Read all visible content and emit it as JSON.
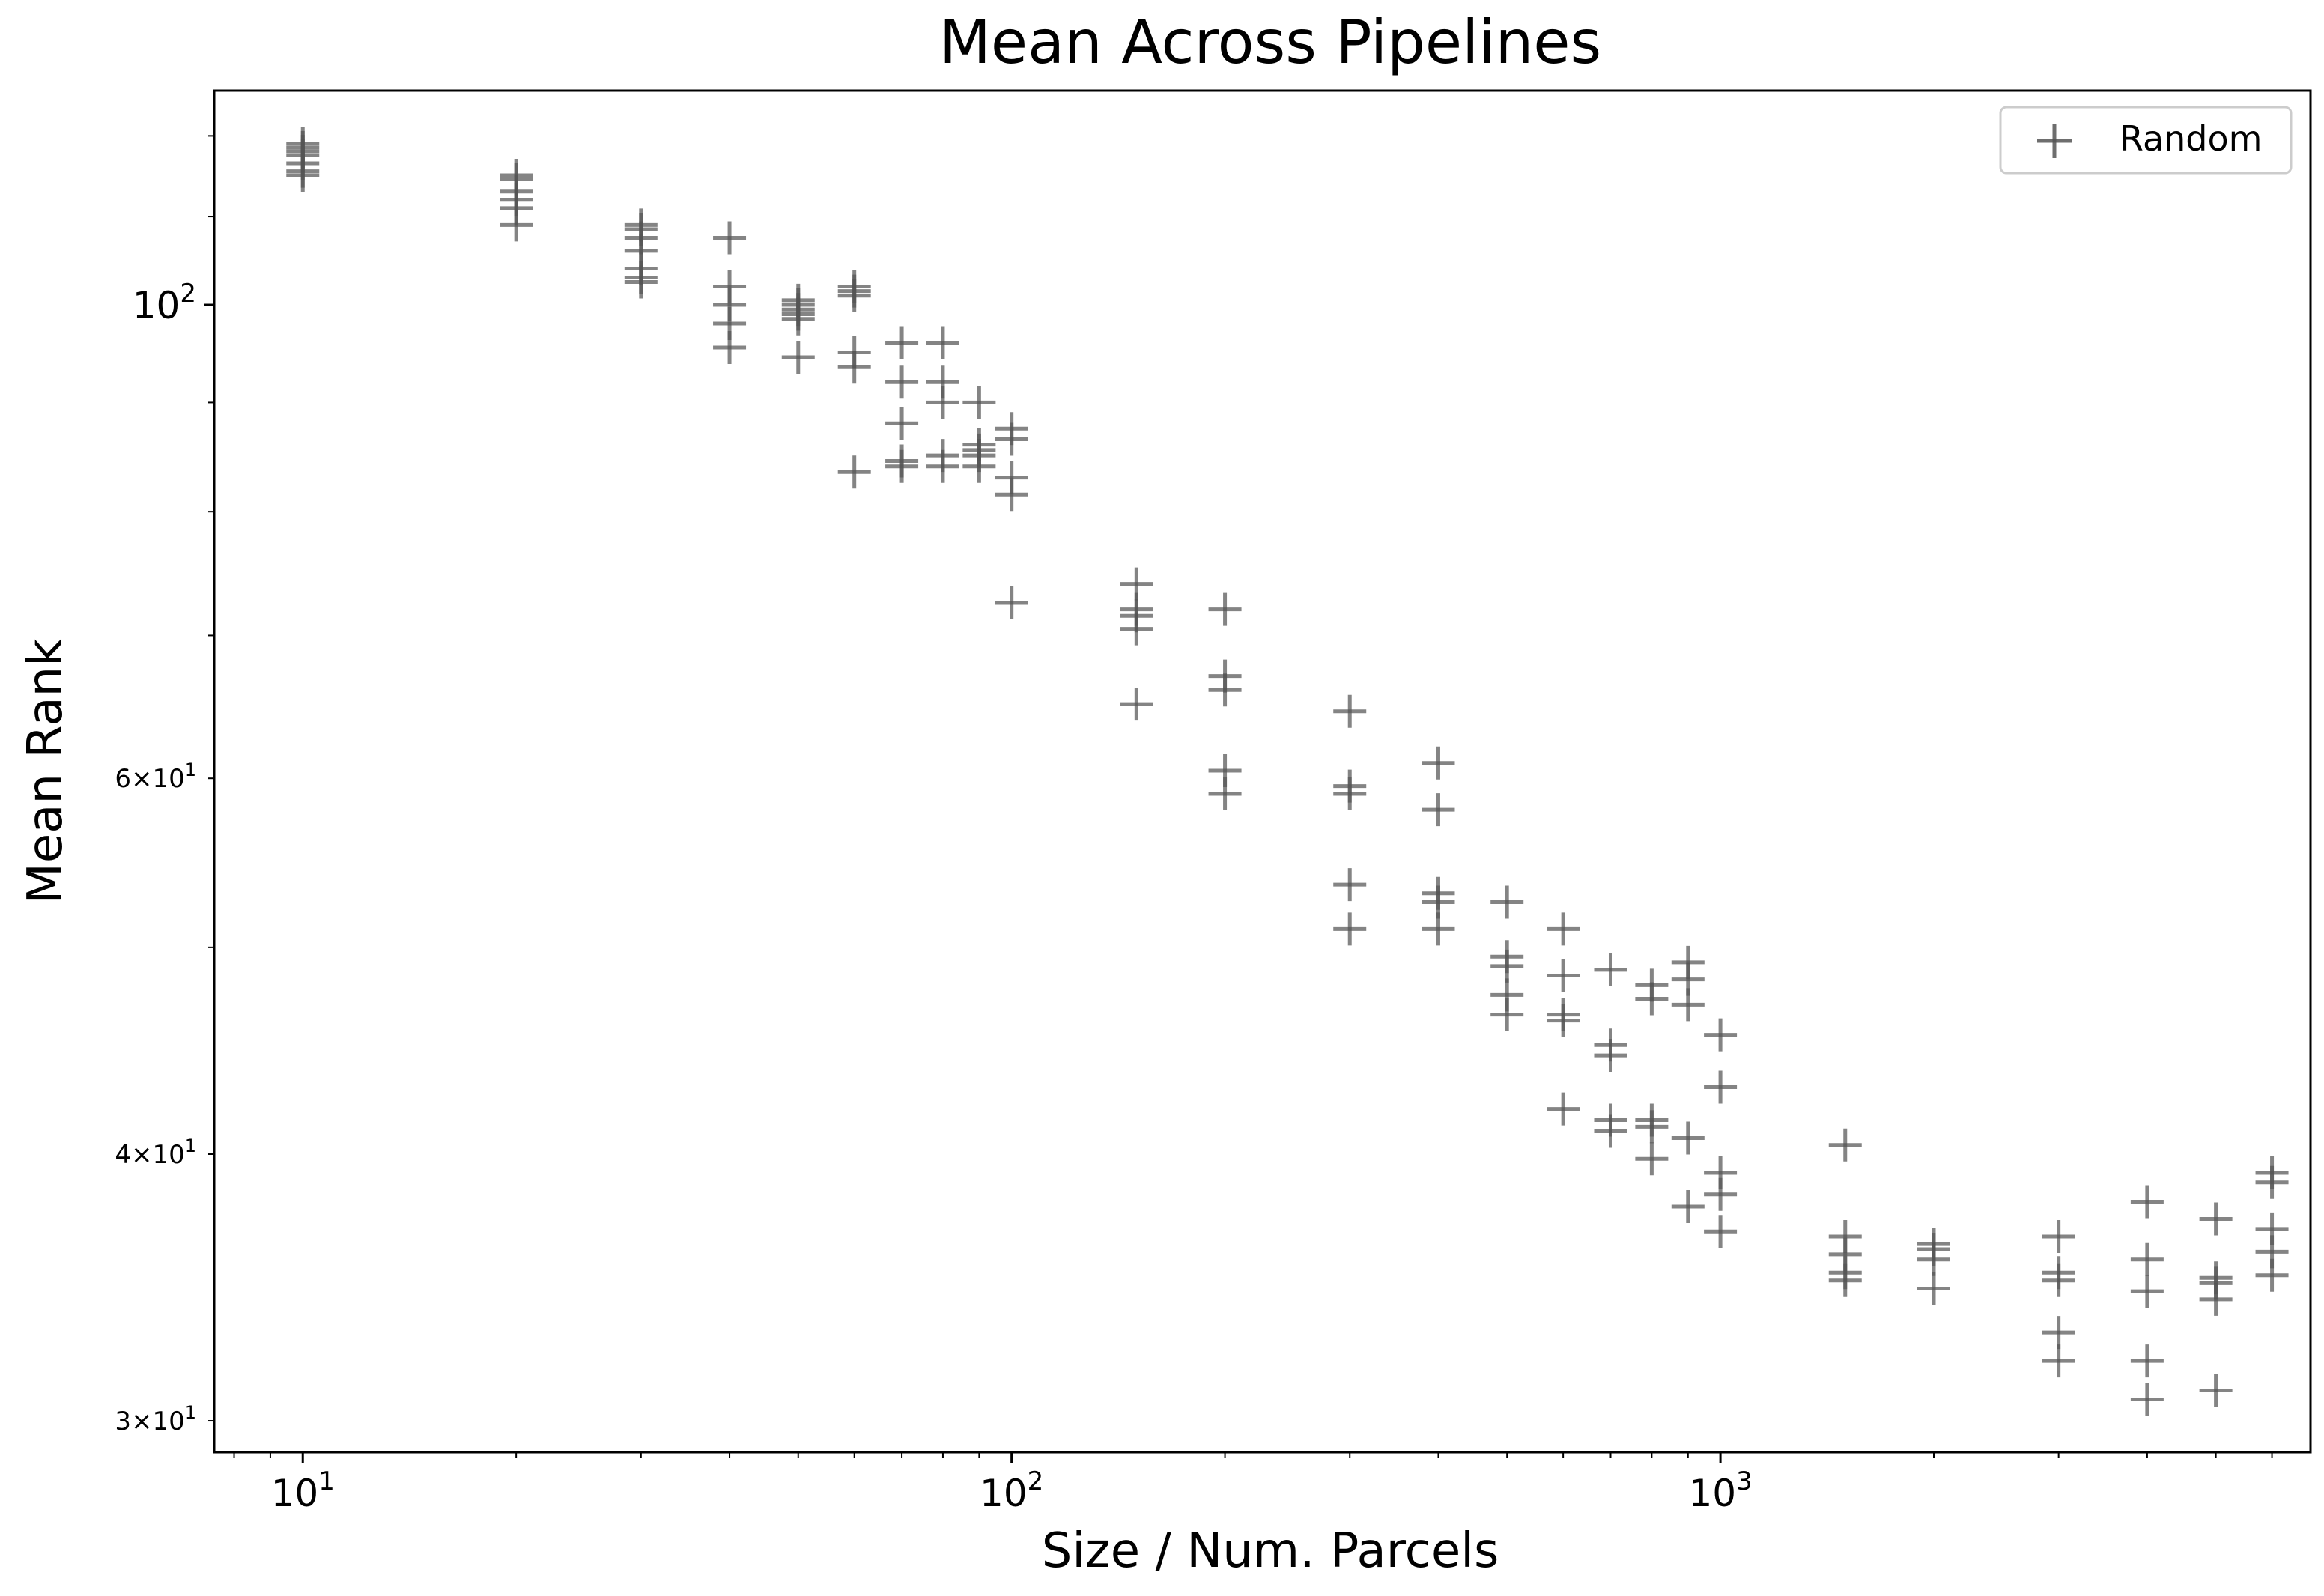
{
  "chart_data": {
    "type": "scatter",
    "title": "Mean Across Pipelines",
    "xlabel": "Size / Num. Parcels",
    "ylabel": "Mean Rank",
    "xscale": "log",
    "yscale": "log",
    "xlim": [
      7.5,
      6800
    ],
    "ylim": [
      29.0,
      126.0
    ],
    "grid": false,
    "legend": {
      "placement": "top-right",
      "entries": [
        "Random"
      ]
    },
    "marker": "+",
    "marker_color": "#555555",
    "x_ticks": [
      {
        "value": 10,
        "base": "10",
        "exp": "1"
      },
      {
        "value": 100,
        "base": "10",
        "exp": "2"
      },
      {
        "value": 1000,
        "base": "10",
        "exp": "3"
      }
    ],
    "y_ticks": [
      {
        "value": 100,
        "mant": "",
        "base": "10",
        "exp": "2"
      },
      {
        "value": 60,
        "mant": "6×",
        "base": "10",
        "exp": "1"
      },
      {
        "value": 40,
        "mant": "4×",
        "base": "10",
        "exp": "1"
      },
      {
        "value": 30,
        "mant": "3×",
        "base": "10",
        "exp": "1"
      }
    ],
    "series": [
      {
        "name": "Random",
        "points": [
          [
            10,
            119
          ],
          [
            10,
            118.5
          ],
          [
            10,
            118
          ],
          [
            10,
            117.5
          ],
          [
            10,
            116.5
          ],
          [
            10,
            115.5
          ],
          [
            10,
            115
          ],
          [
            20,
            115
          ],
          [
            20,
            114.5
          ],
          [
            20,
            113
          ],
          [
            20,
            112
          ],
          [
            20,
            111
          ],
          [
            20,
            109
          ],
          [
            30,
            109
          ],
          [
            30,
            108.5
          ],
          [
            30,
            107.5
          ],
          [
            30,
            106
          ],
          [
            30,
            104
          ],
          [
            30,
            103
          ],
          [
            30,
            102.5
          ],
          [
            40,
            107.5
          ],
          [
            40,
            102
          ],
          [
            40,
            100
          ],
          [
            40,
            98
          ],
          [
            40,
            95.5
          ],
          [
            50,
            100.5
          ],
          [
            50,
            100
          ],
          [
            50,
            99.5
          ],
          [
            50,
            99
          ],
          [
            50,
            98.5
          ],
          [
            50,
            94.5
          ],
          [
            60,
            102
          ],
          [
            60,
            101.5
          ],
          [
            60,
            101
          ],
          [
            60,
            95
          ],
          [
            60,
            93.5
          ],
          [
            60,
            83.5
          ],
          [
            70,
            96
          ],
          [
            70,
            92
          ],
          [
            70,
            88
          ],
          [
            70,
            84.5
          ],
          [
            70,
            84
          ],
          [
            80,
            96
          ],
          [
            80,
            92
          ],
          [
            80,
            90
          ],
          [
            80,
            85
          ],
          [
            80,
            84
          ],
          [
            90,
            90
          ],
          [
            90,
            86
          ],
          [
            90,
            85.5
          ],
          [
            90,
            85
          ],
          [
            90,
            84
          ],
          [
            100,
            87.5
          ],
          [
            100,
            86.5
          ],
          [
            100,
            83
          ],
          [
            100,
            81.5
          ],
          [
            100,
            72.5
          ],
          [
            150,
            74
          ],
          [
            150,
            72
          ],
          [
            150,
            71.5
          ],
          [
            150,
            70.5
          ],
          [
            150,
            65
          ],
          [
            200,
            72
          ],
          [
            200,
            67
          ],
          [
            200,
            66
          ],
          [
            200,
            60.5
          ],
          [
            200,
            59
          ],
          [
            300,
            64.5
          ],
          [
            300,
            59.5
          ],
          [
            300,
            59
          ],
          [
            300,
            53.5
          ],
          [
            300,
            51
          ],
          [
            400,
            61
          ],
          [
            400,
            58
          ],
          [
            400,
            53
          ],
          [
            400,
            52.5
          ],
          [
            400,
            51
          ],
          [
            500,
            52.5
          ],
          [
            500,
            49.5
          ],
          [
            500,
            49
          ],
          [
            500,
            47.5
          ],
          [
            500,
            46.5
          ],
          [
            600,
            51
          ],
          [
            600,
            48.5
          ],
          [
            600,
            46.5
          ],
          [
            600,
            46.2
          ],
          [
            600,
            42
          ],
          [
            700,
            48.8
          ],
          [
            700,
            45
          ],
          [
            700,
            44.5
          ],
          [
            700,
            41.5
          ],
          [
            700,
            41
          ],
          [
            800,
            48
          ],
          [
            800,
            47.3
          ],
          [
            800,
            41.5
          ],
          [
            800,
            41.2
          ],
          [
            800,
            39.8
          ],
          [
            900,
            49.2
          ],
          [
            900,
            48.3
          ],
          [
            900,
            47
          ],
          [
            900,
            40.7
          ],
          [
            900,
            37.8
          ],
          [
            1000,
            45.5
          ],
          [
            1000,
            43
          ],
          [
            1000,
            39.2
          ],
          [
            1000,
            38.3
          ],
          [
            1000,
            36.8
          ],
          [
            1500,
            40.4
          ],
          [
            1500,
            36.6
          ],
          [
            1500,
            35.9
          ],
          [
            1500,
            35.2
          ],
          [
            1500,
            34.9
          ],
          [
            2000,
            36.3
          ],
          [
            2000,
            36.1
          ],
          [
            2000,
            35.7
          ],
          [
            2000,
            34.6
          ],
          [
            3000,
            36.6
          ],
          [
            3000,
            35.2
          ],
          [
            3000,
            34.9
          ],
          [
            3000,
            33.0
          ],
          [
            3000,
            32.0
          ],
          [
            4000,
            38.0
          ],
          [
            4000,
            35.7
          ],
          [
            4000,
            34.5
          ],
          [
            4000,
            32.0
          ],
          [
            4000,
            30.7
          ],
          [
            5000,
            37.3
          ],
          [
            5000,
            35.0
          ],
          [
            5000,
            34.8
          ],
          [
            5000,
            34.2
          ],
          [
            5000,
            31.0
          ],
          [
            6000,
            39.2
          ],
          [
            6000,
            38.8
          ],
          [
            6000,
            36.9
          ],
          [
            6000,
            36.0
          ],
          [
            6000,
            35.1
          ]
        ]
      }
    ]
  }
}
